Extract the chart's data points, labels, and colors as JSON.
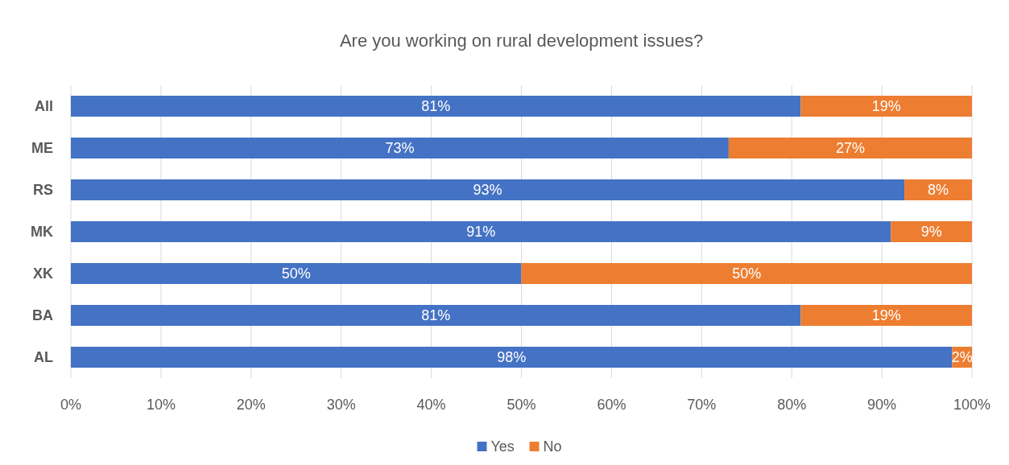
{
  "chart_data": {
    "type": "bar",
    "orientation": "horizontal",
    "stacked": true,
    "title": "Are you working on rural development issues?",
    "categories": [
      "All",
      "ME",
      "RS",
      "MK",
      "XK",
      "BA",
      "AL"
    ],
    "series": [
      {
        "name": "Yes",
        "color": "#4472c4",
        "values": [
          81,
          73,
          92.5,
          91,
          50,
          81,
          97.8
        ],
        "value_labels": [
          "81%",
          "73%",
          "93%",
          "91%",
          "50%",
          "81%",
          "98%"
        ]
      },
      {
        "name": "No",
        "color": "#ed7d31",
        "values": [
          19,
          27,
          7.5,
          9,
          50,
          19,
          2.2
        ],
        "value_labels": [
          "19%",
          "27%",
          "8%",
          "9%",
          "50%",
          "19%",
          "2%"
        ]
      }
    ],
    "xlim": [
      0,
      100
    ],
    "xticks": [
      {
        "value": 0,
        "label": "0%"
      },
      {
        "value": 10,
        "label": "10%"
      },
      {
        "value": 20,
        "label": "20%"
      },
      {
        "value": 30,
        "label": "30%"
      },
      {
        "value": 40,
        "label": "40%"
      },
      {
        "value": 50,
        "label": "50%"
      },
      {
        "value": 60,
        "label": "60%"
      },
      {
        "value": 70,
        "label": "70%"
      },
      {
        "value": 80,
        "label": "80%"
      },
      {
        "value": 90,
        "label": "90%"
      },
      {
        "value": 100,
        "label": "100%"
      }
    ],
    "grid": "x",
    "legend": "bottom"
  }
}
